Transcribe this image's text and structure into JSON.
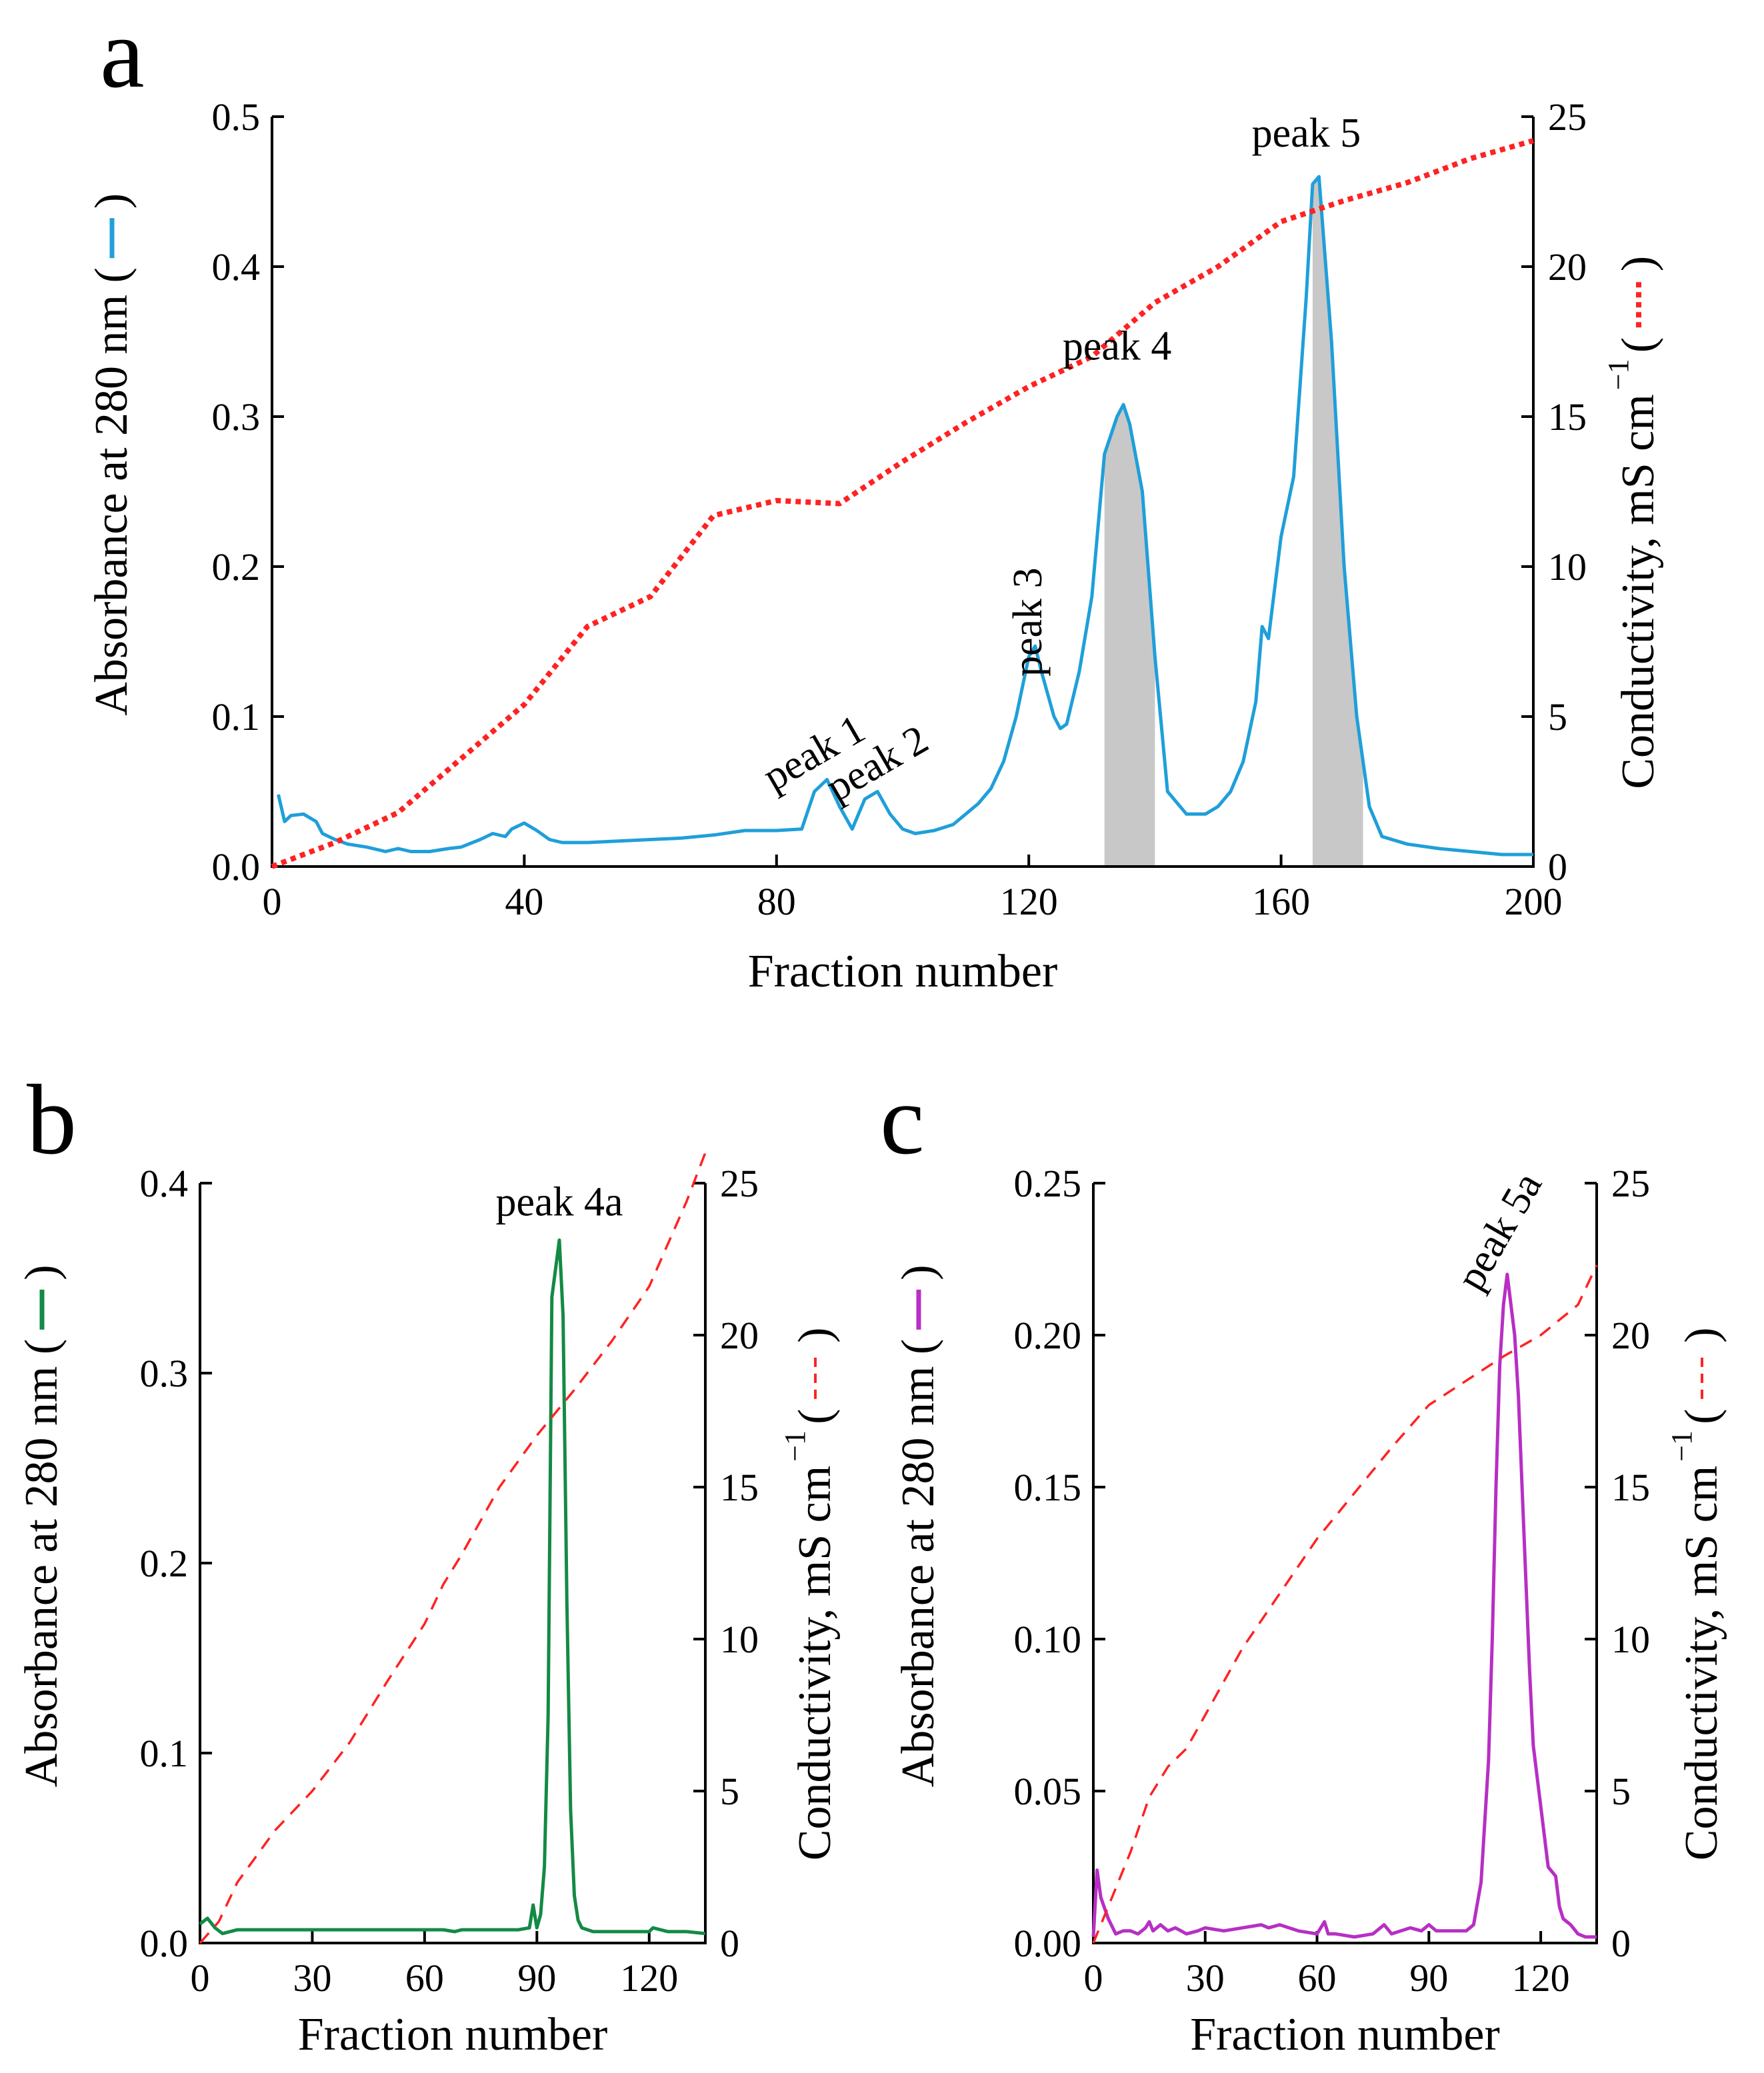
{
  "colors": {
    "abs_a": "#1f9fd9",
    "abs_b": "#138a44",
    "abs_c": "#b72fc4",
    "conductivity": "#ff2222",
    "shade": "#c8c8c8"
  },
  "chart_data": [
    {
      "type": "line",
      "panel": "a",
      "xlabel": "Fraction number",
      "ylabel": "Absorbance at 280 nm (",
      "y2label": "Conductivity, mS cm",
      "y2label_sup": "−1",
      "xlim": [
        0,
        200
      ],
      "ylim": [
        0,
        0.5
      ],
      "y2lim": [
        0,
        25
      ],
      "xticks": [
        "0",
        "40",
        "80",
        "120",
        "160",
        "200"
      ],
      "xtick_values": [
        0,
        40,
        80,
        120,
        160,
        200
      ],
      "yticks": [
        "0.0",
        "0.1",
        "0.2",
        "0.3",
        "0.4",
        "0.5"
      ],
      "ytick_values": [
        0,
        0.1,
        0.2,
        0.3,
        0.4,
        0.5
      ],
      "y2ticks": [
        "0",
        "5",
        "10",
        "15",
        "20",
        "25"
      ],
      "y2tick_values": [
        0,
        5,
        10,
        15,
        20,
        25
      ],
      "series": [
        {
          "name": "Absorbance at 280 nm",
          "axis": "left",
          "style": "solid",
          "color_key": "abs_a",
          "x": [
            1,
            2,
            3,
            5,
            7,
            8,
            10,
            12,
            15,
            18,
            20,
            22,
            25,
            28,
            30,
            33,
            35,
            37,
            38,
            40,
            42,
            44,
            46,
            50,
            55,
            60,
            65,
            70,
            75,
            80,
            84,
            86,
            88,
            90,
            92,
            94,
            96,
            98,
            100,
            102,
            105,
            108,
            110,
            112,
            114,
            116,
            118,
            120,
            121,
            122,
            124,
            125,
            126,
            128,
            130,
            132,
            134,
            135,
            136,
            138,
            140,
            142,
            145,
            148,
            150,
            152,
            154,
            156,
            157,
            158,
            160,
            162,
            164,
            165,
            166,
            168,
            170,
            172,
            174,
            176,
            180,
            185,
            190,
            195,
            200
          ],
          "y": [
            0.048,
            0.03,
            0.034,
            0.035,
            0.03,
            0.022,
            0.018,
            0.015,
            0.013,
            0.01,
            0.012,
            0.01,
            0.01,
            0.012,
            0.013,
            0.018,
            0.022,
            0.02,
            0.025,
            0.029,
            0.024,
            0.018,
            0.016,
            0.016,
            0.017,
            0.018,
            0.019,
            0.021,
            0.024,
            0.024,
            0.025,
            0.05,
            0.058,
            0.04,
            0.025,
            0.045,
            0.05,
            0.035,
            0.025,
            0.022,
            0.024,
            0.028,
            0.035,
            0.042,
            0.052,
            0.07,
            0.1,
            0.14,
            0.147,
            0.13,
            0.1,
            0.092,
            0.095,
            0.13,
            0.18,
            0.275,
            0.3,
            0.308,
            0.295,
            0.25,
            0.14,
            0.05,
            0.035,
            0.035,
            0.04,
            0.05,
            0.07,
            0.11,
            0.16,
            0.152,
            0.22,
            0.26,
            0.38,
            0.455,
            0.46,
            0.35,
            0.2,
            0.1,
            0.04,
            0.02,
            0.015,
            0.012,
            0.01,
            0.008,
            0.008
          ]
        },
        {
          "name": "Conductivity",
          "axis": "right",
          "style": "dotted",
          "color_key": "conductivity",
          "x": [
            0,
            10,
            20,
            30,
            40,
            50,
            60,
            70,
            80,
            90,
            100,
            110,
            120,
            130,
            140,
            150,
            160,
            170,
            180,
            190,
            200
          ],
          "y": [
            0,
            0.8,
            1.8,
            3.6,
            5.4,
            8,
            9,
            11.7,
            12.2,
            12.1,
            13.5,
            14.8,
            16,
            17,
            18.8,
            20,
            21.5,
            22.2,
            22.8,
            23.6,
            24.2
          ]
        }
      ],
      "shaded_regions": [
        {
          "x": [
            132,
            140
          ],
          "label": "peak 4"
        },
        {
          "x": [
            165,
            173
          ],
          "label": "peak 5"
        }
      ],
      "annotations": [
        {
          "text": "peak 1",
          "x": 87,
          "y": 0.068,
          "rotate": -30
        },
        {
          "text": "peak 2",
          "x": 97,
          "y": 0.061,
          "rotate": -30
        },
        {
          "text": "peak 3",
          "x": 122,
          "y": 0.163,
          "rotate": -90
        },
        {
          "text": "peak 4",
          "x": 134,
          "y": 0.338,
          "rotate": 0
        },
        {
          "text": "peak 5",
          "x": 164,
          "y": 0.48,
          "rotate": 0
        }
      ]
    },
    {
      "type": "line",
      "panel": "b",
      "xlabel": "Fraction number",
      "ylabel": "Absorbance at 280 nm (",
      "y2label": "Conductivity, mS cm",
      "y2label_sup": "−1",
      "xlim": [
        0,
        135
      ],
      "ylim": [
        0,
        0.4
      ],
      "y2lim": [
        0,
        25
      ],
      "xticks": [
        "0",
        "30",
        "60",
        "90",
        "120"
      ],
      "xtick_values": [
        0,
        30,
        60,
        90,
        120
      ],
      "yticks": [
        "0.0",
        "0.1",
        "0.2",
        "0.3",
        "0.4"
      ],
      "ytick_values": [
        0,
        0.1,
        0.2,
        0.3,
        0.4
      ],
      "y2ticks": [
        "0",
        "5",
        "10",
        "15",
        "20",
        "25"
      ],
      "y2tick_values": [
        0,
        5,
        10,
        15,
        20,
        25
      ],
      "series": [
        {
          "name": "Absorbance at 280 nm",
          "axis": "left",
          "style": "solid",
          "color_key": "abs_b",
          "x": [
            0,
            2,
            4,
            6,
            8,
            10,
            20,
            30,
            40,
            50,
            60,
            65,
            68,
            70,
            75,
            80,
            85,
            88,
            89,
            90,
            91,
            92,
            93,
            94,
            95,
            96,
            97,
            98,
            99,
            100,
            101,
            102,
            105,
            110,
            115,
            120,
            121,
            125,
            130,
            135
          ],
          "y": [
            0.01,
            0.013,
            0.008,
            0.005,
            0.006,
            0.007,
            0.007,
            0.007,
            0.007,
            0.007,
            0.007,
            0.007,
            0.006,
            0.007,
            0.007,
            0.007,
            0.007,
            0.008,
            0.02,
            0.008,
            0.015,
            0.04,
            0.12,
            0.34,
            0.355,
            0.37,
            0.33,
            0.18,
            0.07,
            0.025,
            0.012,
            0.008,
            0.006,
            0.006,
            0.006,
            0.006,
            0.008,
            0.006,
            0.006,
            0.005
          ]
        },
        {
          "name": "Conductivity",
          "axis": "right",
          "style": "dashed",
          "color_key": "conductivity",
          "x": [
            0,
            5,
            10,
            20,
            30,
            40,
            50,
            60,
            65,
            70,
            80,
            90,
            100,
            110,
            120,
            130,
            135
          ],
          "y": [
            0,
            0.7,
            2,
            3.7,
            5,
            6.6,
            8.6,
            10.5,
            11.8,
            12.8,
            15,
            16.7,
            18.2,
            19.8,
            21.6,
            24.4,
            26
          ]
        }
      ],
      "annotations": [
        {
          "text": "peak 4a",
          "x": 96,
          "y": 0.383,
          "rotate": 0
        }
      ]
    },
    {
      "type": "line",
      "panel": "c",
      "xlabel": "Fraction number",
      "ylabel": "Absorbance at 280 nm (",
      "y2label": "Conductivity, mS cm",
      "y2label_sup": "−1",
      "xlim": [
        0,
        135
      ],
      "ylim": [
        0,
        0.25
      ],
      "y2lim": [
        0,
        25
      ],
      "xticks": [
        "0",
        "30",
        "60",
        "90",
        "120"
      ],
      "xtick_values": [
        0,
        30,
        60,
        90,
        120
      ],
      "yticks": [
        "0.00",
        "0.05",
        "0.10",
        "0.15",
        "0.20",
        "0.25"
      ],
      "ytick_values": [
        0,
        0.05,
        0.1,
        0.15,
        0.2,
        0.25
      ],
      "y2ticks": [
        "0",
        "5",
        "10",
        "15",
        "20",
        "25"
      ],
      "y2tick_values": [
        0,
        5,
        10,
        15,
        20,
        25
      ],
      "series": [
        {
          "name": "Absorbance at 280 nm",
          "axis": "left",
          "style": "solid",
          "color_key": "abs_c",
          "x": [
            0,
            1,
            2,
            4,
            6,
            8,
            10,
            12,
            14,
            15,
            16,
            18,
            20,
            22,
            25,
            28,
            30,
            35,
            40,
            45,
            47,
            50,
            55,
            60,
            62,
            63,
            65,
            70,
            75,
            78,
            80,
            85,
            88,
            90,
            92,
            95,
            100,
            102,
            104,
            106,
            107,
            108,
            109,
            110,
            111,
            112,
            113,
            114,
            115,
            116,
            117,
            118,
            120,
            122,
            124,
            125,
            126,
            128,
            130,
            132,
            135
          ],
          "y": [
            0.002,
            0.024,
            0.015,
            0.008,
            0.003,
            0.004,
            0.004,
            0.003,
            0.005,
            0.007,
            0.004,
            0.006,
            0.004,
            0.005,
            0.003,
            0.004,
            0.005,
            0.004,
            0.005,
            0.006,
            0.005,
            0.006,
            0.004,
            0.003,
            0.007,
            0.003,
            0.003,
            0.002,
            0.003,
            0.006,
            0.003,
            0.005,
            0.004,
            0.006,
            0.004,
            0.004,
            0.004,
            0.006,
            0.02,
            0.06,
            0.1,
            0.15,
            0.19,
            0.21,
            0.22,
            0.21,
            0.2,
            0.18,
            0.15,
            0.12,
            0.09,
            0.065,
            0.045,
            0.025,
            0.022,
            0.012,
            0.008,
            0.006,
            0.003,
            0.002,
            0.002
          ]
        },
        {
          "name": "Conductivity",
          "axis": "right",
          "style": "dashed",
          "color_key": "conductivity",
          "x": [
            0,
            5,
            10,
            15,
            20,
            25,
            30,
            35,
            40,
            50,
            60,
            70,
            80,
            90,
            100,
            110,
            120,
            130,
            135
          ],
          "y": [
            0,
            1.5,
            3,
            4.8,
            5.8,
            6.4,
            7.5,
            8.6,
            9.7,
            11.5,
            13.3,
            14.8,
            16.3,
            17.7,
            18.5,
            19.3,
            20,
            21,
            22.3
          ]
        }
      ],
      "annotations": [
        {
          "text": "peak 5a",
          "x": 112,
          "y": 0.232,
          "rotate": -60
        }
      ]
    }
  ]
}
